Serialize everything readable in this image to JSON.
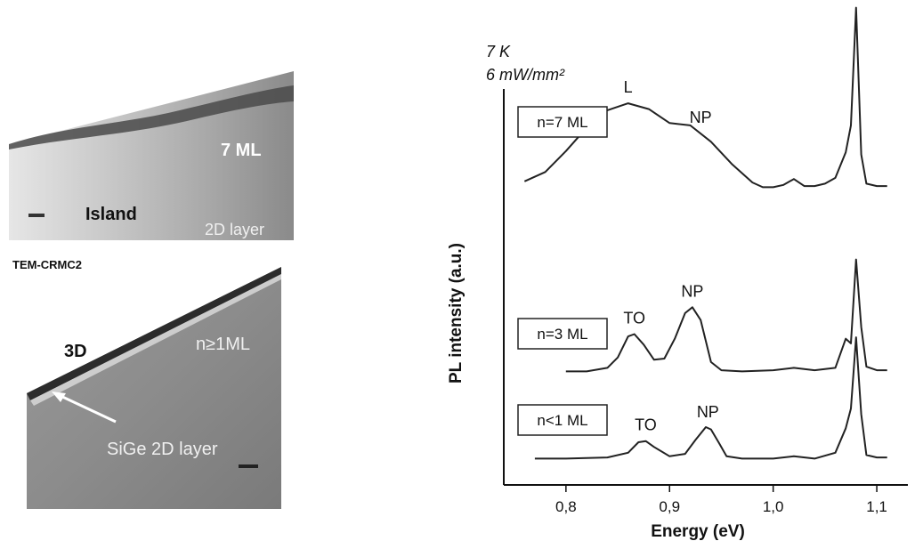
{
  "tem": {
    "top_labels": [
      "7 ML",
      "Island",
      "2D layer"
    ],
    "caption": "TEM-CRMC2",
    "bottom_labels": [
      "3D",
      "n≥1ML",
      "SiGe 2D layer"
    ]
  },
  "chart_data": {
    "type": "line",
    "title": "",
    "conditions": [
      "7 K",
      "6 mW/mm²"
    ],
    "xlabel": "Energy (eV)",
    "ylabel": "PL intensity (a.u.)",
    "xlim": [
      0.74,
      1.13
    ],
    "x_ticks": [
      0.8,
      0.9,
      1.0,
      1.1
    ],
    "x_tick_labels": [
      "0,8",
      "0,9",
      "1,0",
      "1,1"
    ],
    "grid": false,
    "series": [
      {
        "name": "n=7 ML",
        "offset": 2.0,
        "peak_labels": [
          {
            "text": "L",
            "x": 0.86
          },
          {
            "text": "NP",
            "x": 0.93
          }
        ],
        "x": [
          0.76,
          0.78,
          0.8,
          0.82,
          0.84,
          0.86,
          0.88,
          0.9,
          0.92,
          0.94,
          0.96,
          0.98,
          0.99,
          1.0,
          1.01,
          1.02,
          1.03,
          1.04,
          1.05,
          1.06,
          1.07,
          1.075,
          1.08,
          1.085,
          1.09,
          1.1,
          1.11
        ],
        "values": [
          0.07,
          0.15,
          0.33,
          0.53,
          0.68,
          0.74,
          0.69,
          0.57,
          0.55,
          0.41,
          0.22,
          0.06,
          0.02,
          0.02,
          0.04,
          0.09,
          0.03,
          0.03,
          0.05,
          0.1,
          0.32,
          0.55,
          1.56,
          0.3,
          0.05,
          0.03,
          0.03
        ]
      },
      {
        "name": "n=3 ML",
        "offset": 1.0,
        "peak_labels": [
          {
            "text": "TO",
            "x": 0.866
          },
          {
            "text": "NP",
            "x": 0.922
          }
        ],
        "x": [
          0.8,
          0.82,
          0.84,
          0.85,
          0.86,
          0.866,
          0.875,
          0.885,
          0.895,
          0.905,
          0.915,
          0.922,
          0.93,
          0.94,
          0.95,
          0.97,
          1.0,
          1.02,
          1.04,
          1.06,
          1.07,
          1.075,
          1.08,
          1.085,
          1.09,
          1.1,
          1.11
        ],
        "values": [
          0.02,
          0.02,
          0.05,
          0.14,
          0.32,
          0.34,
          0.25,
          0.12,
          0.13,
          0.3,
          0.52,
          0.57,
          0.46,
          0.1,
          0.03,
          0.02,
          0.03,
          0.05,
          0.03,
          0.05,
          0.3,
          0.26,
          0.98,
          0.4,
          0.06,
          0.03,
          0.03
        ]
      },
      {
        "name": "n<1 ML",
        "offset": 0.0,
        "peak_labels": [
          {
            "text": "TO",
            "x": 0.877
          },
          {
            "text": "NP",
            "x": 0.937
          }
        ],
        "x": [
          0.77,
          0.8,
          0.84,
          0.86,
          0.87,
          0.877,
          0.885,
          0.9,
          0.915,
          0.925,
          0.935,
          0.94,
          0.948,
          0.955,
          0.97,
          1.0,
          1.02,
          1.04,
          1.06,
          1.07,
          1.075,
          1.08,
          1.085,
          1.09,
          1.1,
          1.11
        ],
        "values": [
          0.02,
          0.02,
          0.03,
          0.07,
          0.16,
          0.17,
          0.12,
          0.04,
          0.06,
          0.18,
          0.29,
          0.27,
          0.15,
          0.04,
          0.02,
          0.02,
          0.04,
          0.02,
          0.07,
          0.28,
          0.45,
          1.06,
          0.4,
          0.05,
          0.03,
          0.03
        ]
      }
    ]
  }
}
